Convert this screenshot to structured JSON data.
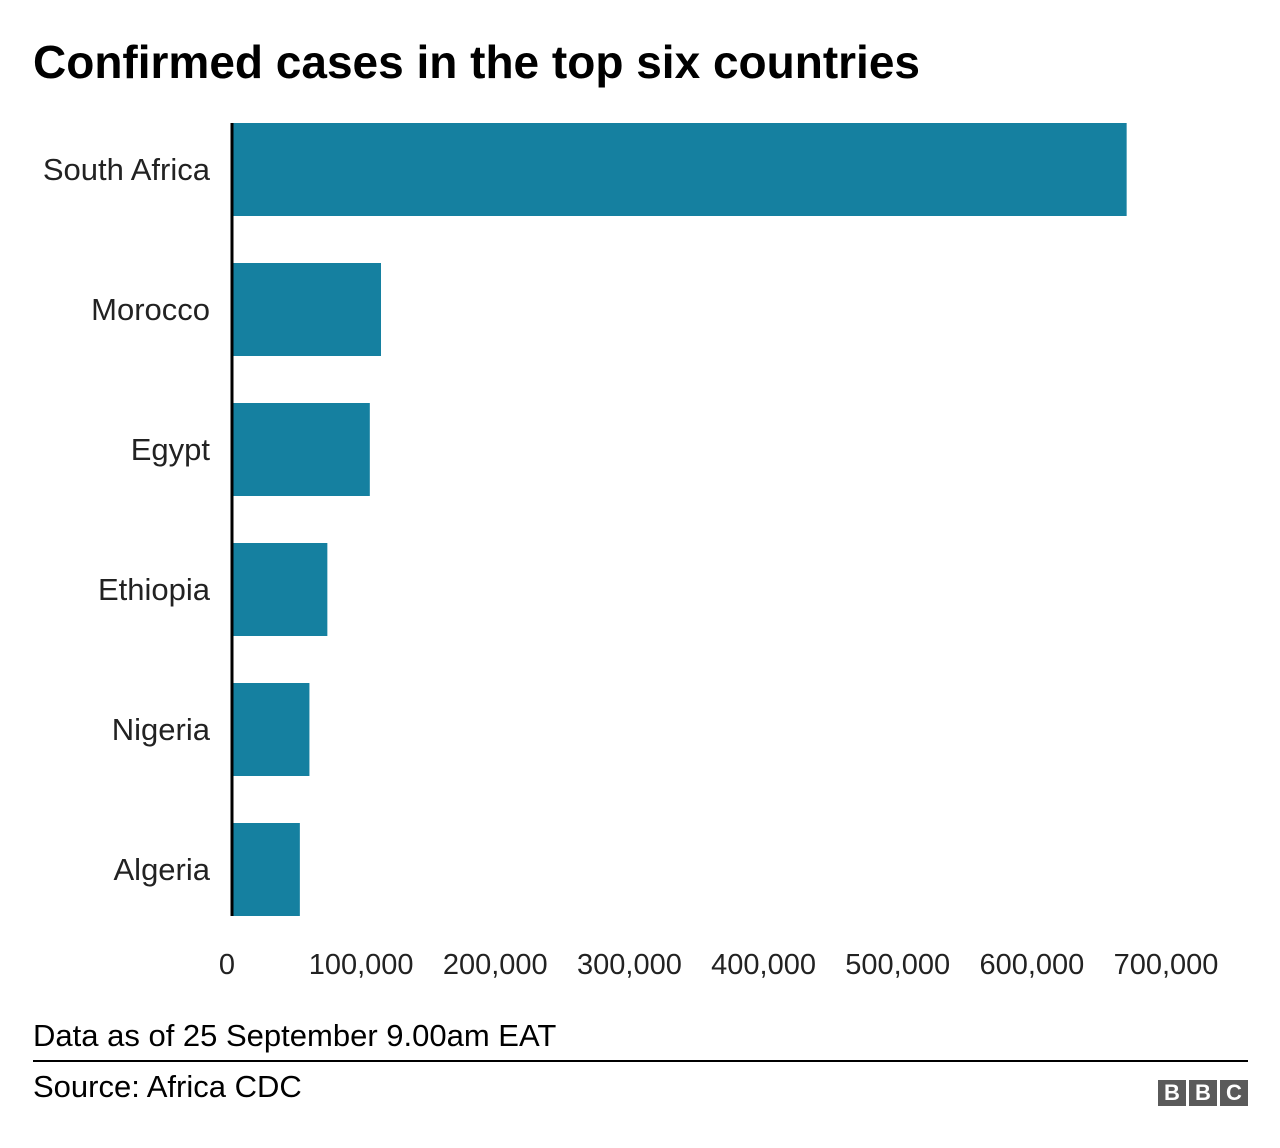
{
  "chart_data": {
    "type": "bar",
    "orientation": "horizontal",
    "title": "Confirmed cases in the top six countries",
    "categories": [
      "South Africa",
      "Morocco",
      "Egypt",
      "Ethiopia",
      "Nigeria",
      "Algeria"
    ],
    "values": [
      666941,
      111077,
      102736,
      71083,
      57724,
      50579
    ],
    "xlim": [
      0,
      700000
    ],
    "xticks": [
      "0",
      "100,000",
      "200,000",
      "300,000",
      "400,000",
      "500,000",
      "600,000",
      "700,000"
    ],
    "grid": false,
    "bar_color": "#1580a0"
  },
  "footer": {
    "note": "Data as of 25 September 9.00am EAT",
    "source": "Source: Africa CDC",
    "logo_letters": [
      "B",
      "B",
      "C"
    ]
  }
}
